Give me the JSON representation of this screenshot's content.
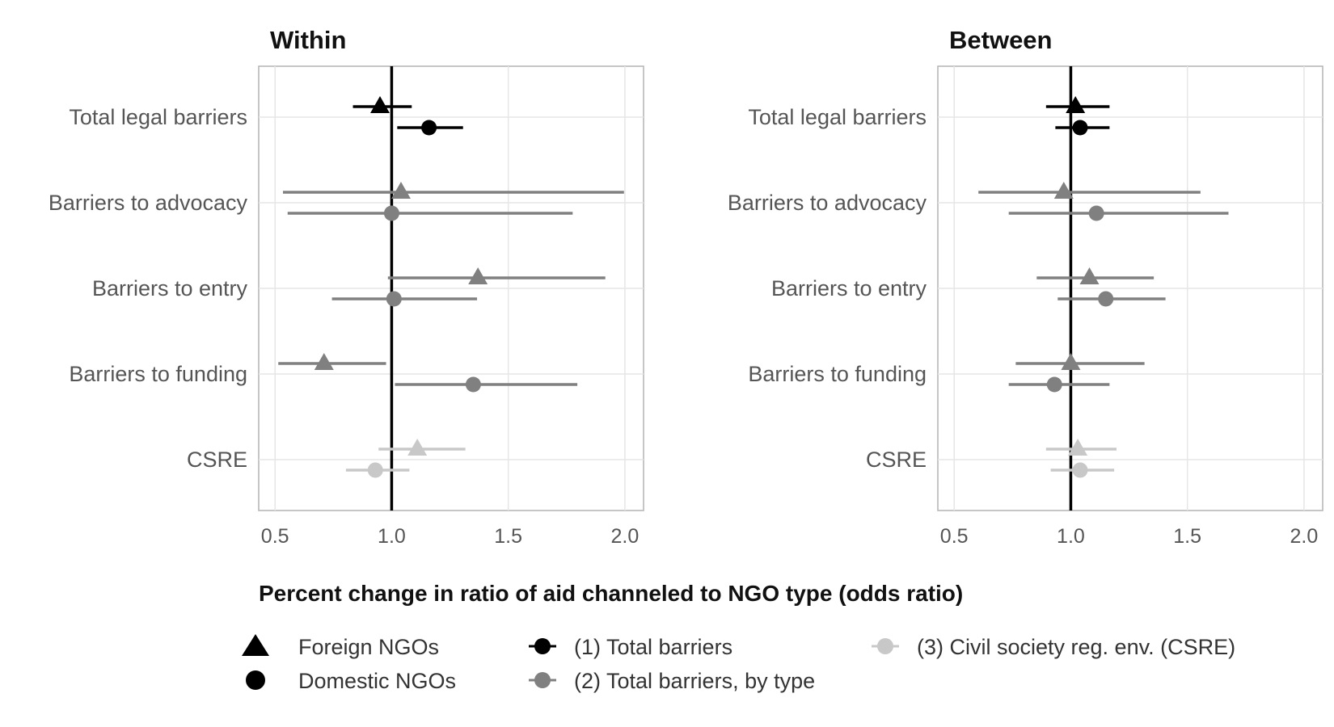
{
  "chart_data": {
    "type": "forest",
    "xlabel": "Percent change in ratio of aid channeled to NGO type (odds ratio)",
    "xlim": [
      0.43,
      2.08
    ],
    "xticks": [
      0.5,
      1.0,
      1.5,
      2.0
    ],
    "xtick_labels": [
      "0.5",
      "1.0",
      "1.5",
      "2.0"
    ],
    "reference_line": 1.0,
    "grid": true,
    "categories": [
      "Total legal barriers",
      "Barriers to advocacy",
      "Barriers to entry",
      "Barriers to funding",
      "CSRE"
    ],
    "colors": {
      "model1": "#000000",
      "model2": "#808080",
      "model3": "#c8c8c8"
    },
    "panels": [
      {
        "title": "Within",
        "points": [
          {
            "category": "Total legal barriers",
            "ngo": "Foreign NGOs",
            "model": "model1",
            "est": 0.95,
            "lo": 0.84,
            "hi": 1.08
          },
          {
            "category": "Total legal barriers",
            "ngo": "Domestic NGOs",
            "model": "model1",
            "est": 1.16,
            "lo": 1.03,
            "hi": 1.3
          },
          {
            "category": "Barriers to advocacy",
            "ngo": "Foreign NGOs",
            "model": "model2",
            "est": 1.04,
            "lo": 0.54,
            "hi": 1.99
          },
          {
            "category": "Barriers to advocacy",
            "ngo": "Domestic NGOs",
            "model": "model2",
            "est": 1.0,
            "lo": 0.56,
            "hi": 1.77
          },
          {
            "category": "Barriers to entry",
            "ngo": "Foreign NGOs",
            "model": "model2",
            "est": 1.37,
            "lo": 0.99,
            "hi": 1.91
          },
          {
            "category": "Barriers to entry",
            "ngo": "Domestic NGOs",
            "model": "model2",
            "est": 1.01,
            "lo": 0.75,
            "hi": 1.36
          },
          {
            "category": "Barriers to funding",
            "ngo": "Foreign NGOs",
            "model": "model2",
            "est": 0.71,
            "lo": 0.52,
            "hi": 0.97
          },
          {
            "category": "Barriers to funding",
            "ngo": "Domestic NGOs",
            "model": "model2",
            "est": 1.35,
            "lo": 1.02,
            "hi": 1.79
          },
          {
            "category": "CSRE",
            "ngo": "Foreign NGOs",
            "model": "model3",
            "est": 1.11,
            "lo": 0.95,
            "hi": 1.31
          },
          {
            "category": "CSRE",
            "ngo": "Domestic NGOs",
            "model": "model3",
            "est": 0.93,
            "lo": 0.81,
            "hi": 1.07
          }
        ]
      },
      {
        "title": "Between",
        "points": [
          {
            "category": "Total legal barriers",
            "ngo": "Foreign NGOs",
            "model": "model1",
            "est": 1.02,
            "lo": 0.9,
            "hi": 1.16
          },
          {
            "category": "Total legal barriers",
            "ngo": "Domestic NGOs",
            "model": "model1",
            "est": 1.04,
            "lo": 0.94,
            "hi": 1.16
          },
          {
            "category": "Barriers to advocacy",
            "ngo": "Foreign NGOs",
            "model": "model2",
            "est": 0.97,
            "lo": 0.61,
            "hi": 1.55
          },
          {
            "category": "Barriers to advocacy",
            "ngo": "Domestic NGOs",
            "model": "model2",
            "est": 1.11,
            "lo": 0.74,
            "hi": 1.67
          },
          {
            "category": "Barriers to entry",
            "ngo": "Foreign NGOs",
            "model": "model2",
            "est": 1.08,
            "lo": 0.86,
            "hi": 1.35
          },
          {
            "category": "Barriers to entry",
            "ngo": "Domestic NGOs",
            "model": "model2",
            "est": 1.15,
            "lo": 0.95,
            "hi": 1.4
          },
          {
            "category": "Barriers to funding",
            "ngo": "Foreign NGOs",
            "model": "model2",
            "est": 1.0,
            "lo": 0.77,
            "hi": 1.31
          },
          {
            "category": "Barriers to funding",
            "ngo": "Domestic NGOs",
            "model": "model2",
            "est": 0.93,
            "lo": 0.74,
            "hi": 1.16
          },
          {
            "category": "CSRE",
            "ngo": "Foreign NGOs",
            "model": "model3",
            "est": 1.03,
            "lo": 0.9,
            "hi": 1.19
          },
          {
            "category": "CSRE",
            "ngo": "Domestic NGOs",
            "model": "model3",
            "est": 1.04,
            "lo": 0.92,
            "hi": 1.18
          }
        ]
      }
    ]
  },
  "legend": {
    "shapes": [
      {
        "label": "Foreign NGOs",
        "shape": "triangle"
      },
      {
        "label": "Domestic NGOs",
        "shape": "circle"
      }
    ],
    "models": [
      {
        "label": "(1) Total barriers",
        "color": "#000000"
      },
      {
        "label": "(2) Total barriers, by type",
        "color": "#808080"
      },
      {
        "label": "(3) Civil society reg. env. (CSRE)",
        "color": "#c8c8c8"
      }
    ]
  }
}
